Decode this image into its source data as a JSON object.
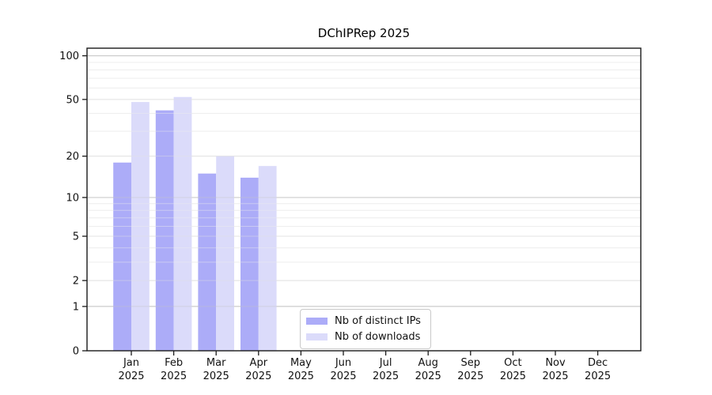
{
  "title": "DChIPRep 2025",
  "chart_data": {
    "type": "bar",
    "title": "DChIPRep 2025",
    "categories": [
      "Jan 2025",
      "Feb 2025",
      "Mar 2025",
      "Apr 2025",
      "May 2025",
      "Jun 2025",
      "Jul 2025",
      "Aug 2025",
      "Sep 2025",
      "Oct 2025",
      "Nov 2025",
      "Dec 2025"
    ],
    "series": [
      {
        "name": "Nb of distinct IPs",
        "color": "#acacf8",
        "values": [
          18,
          42,
          15,
          14,
          null,
          null,
          null,
          null,
          null,
          null,
          null,
          null
        ]
      },
      {
        "name": "Nb of downloads",
        "color": "#dbdbfa",
        "values": [
          48,
          52,
          20,
          17,
          null,
          null,
          null,
          null,
          null,
          null,
          null,
          null
        ]
      }
    ],
    "yscale": "log1p",
    "yticks": [
      0,
      1,
      2,
      5,
      10,
      20,
      50,
      100
    ],
    "yticks_minor": [
      3,
      4,
      6,
      7,
      8,
      9,
      30,
      40,
      60,
      70,
      80,
      90
    ],
    "ylim": [
      0,
      113
    ],
    "xlabel": "",
    "ylabel": "",
    "grid": "horizontal",
    "legend_position": "inside-bottom-center",
    "colors": {
      "power_grid": "#c6c6c6",
      "labeled_grid": "#e3e3e3",
      "minor_grid": "#eeeeee",
      "axis": "#1a1a1a",
      "text": "#111111"
    }
  }
}
